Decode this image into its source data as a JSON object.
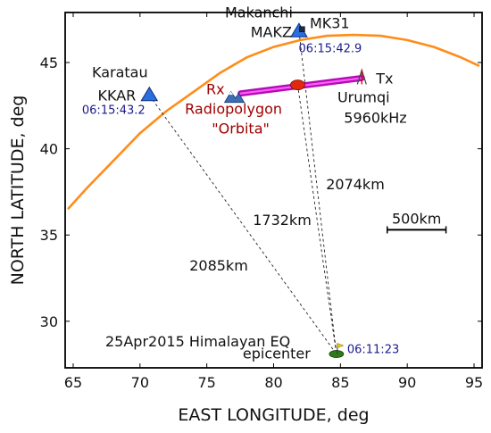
{
  "chart_data": {
    "type": "map",
    "xlabel": "EAST LONGITUDE, deg",
    "ylabel": "NORTH LATITUDE, deg",
    "xlim": [
      64.4,
      95.6
    ],
    "ylim": [
      27.3,
      47.9
    ],
    "xticks": [
      65,
      70,
      75,
      80,
      85,
      90,
      95
    ],
    "yticks": [
      30,
      35,
      40,
      45
    ],
    "grid": false,
    "scale_bar": {
      "label": "500km",
      "lon_start": 88.5,
      "lon_end": 92.9,
      "lat": 35.3
    },
    "stations": [
      {
        "id": "karatau",
        "name": "Karatau",
        "code": "KKAR",
        "lon": 70.7,
        "lat": 43.1,
        "time": "06:15:43.2",
        "distance_label": "2085km"
      },
      {
        "id": "makanchi",
        "name": "Makanchi",
        "code": "MAKZ",
        "code2": "MK31",
        "lon": 81.9,
        "lat": 46.8,
        "time": "06:15:42.9",
        "distance_label": "2074km"
      }
    ],
    "receiver": {
      "short": "Rx",
      "name": "Radiopolygon",
      "name2": "\"Orbita\"",
      "lon": 77.0,
      "lat": 43.0,
      "distance_label": "1732km"
    },
    "transmitter": {
      "short": "Tx",
      "name": "Urumqi",
      "frequency": "5960kHz",
      "lon": 86.6,
      "lat": 44.1
    },
    "radio_path_midpoint": {
      "lon": 81.8,
      "lat": 43.7
    },
    "epicenter": {
      "label": "25Apr2015 Himalayan EQ",
      "label2": "epicenter",
      "lon": 84.7,
      "lat": 28.1,
      "time": "06:11:23"
    },
    "arcs": [
      {
        "name": "arc",
        "points": [
          [
            64.6,
            36.5
          ],
          [
            66,
            37.7
          ],
          [
            68,
            39.3
          ],
          [
            70,
            40.9
          ],
          [
            72,
            42.2
          ],
          [
            74,
            43.3
          ],
          [
            76,
            44.4
          ],
          [
            78,
            45.3
          ],
          [
            80,
            45.9
          ],
          [
            82,
            46.3
          ],
          [
            84,
            46.55
          ],
          [
            86,
            46.6
          ],
          [
            88,
            46.55
          ],
          [
            90,
            46.3
          ],
          [
            92,
            45.9
          ],
          [
            94,
            45.3
          ],
          [
            95.4,
            44.8
          ]
        ]
      }
    ]
  }
}
